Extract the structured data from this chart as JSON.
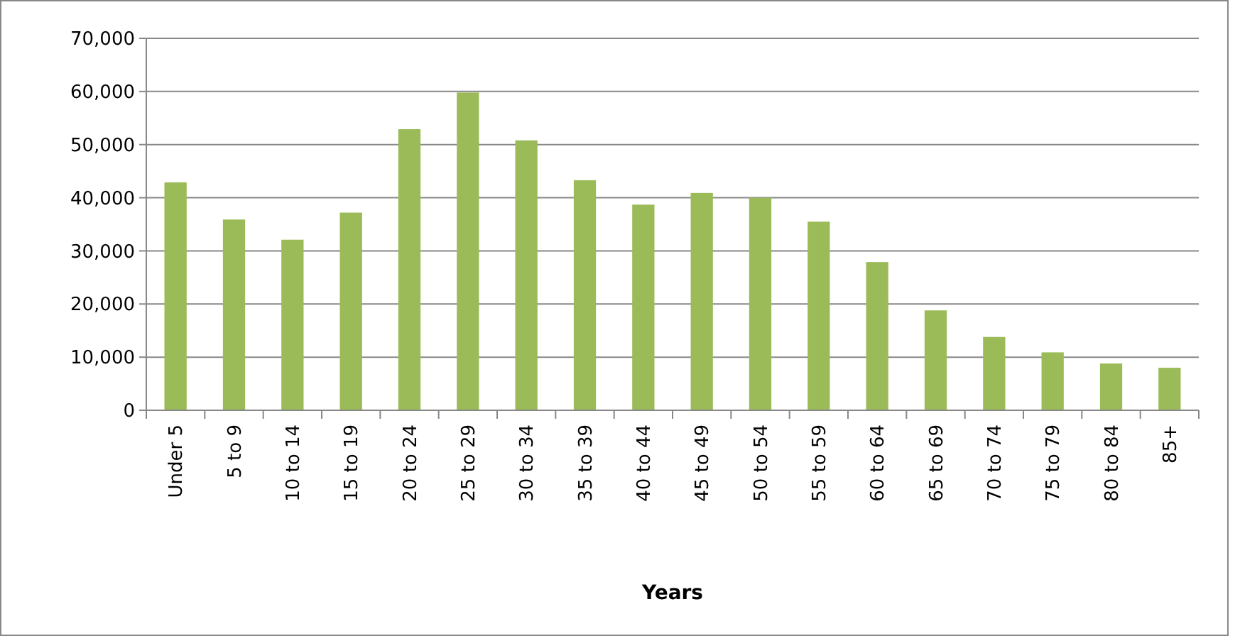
{
  "chart_data": {
    "type": "bar",
    "xlabel": "Years",
    "categories": [
      "Under 5",
      "5 to 9",
      "10 to 14",
      "15 to 19",
      "20 to 24",
      "25 to 29",
      "30 to 34",
      "35 to 39",
      "40 to 44",
      "45 to 49",
      "50 to 54",
      "55 to 59",
      "60 to 64",
      "65 to 69",
      "70 to 74",
      "75 to 79",
      "80 to 84",
      "85+"
    ],
    "values": [
      42900,
      35900,
      32100,
      37200,
      52900,
      59800,
      50800,
      43300,
      38700,
      40900,
      40000,
      35500,
      27900,
      18800,
      13800,
      10900,
      8800,
      8000
    ],
    "color": "#9bbb59",
    "ylim": [
      0,
      70000
    ],
    "yticks": [
      {
        "value": 0,
        "label": "0"
      },
      {
        "value": 10000,
        "label": "10,000"
      },
      {
        "value": 20000,
        "label": "20,000"
      },
      {
        "value": 30000,
        "label": "30,000"
      },
      {
        "value": 40000,
        "label": "40,000"
      },
      {
        "value": 50000,
        "label": "50,000"
      },
      {
        "value": 60000,
        "label": "60,000"
      },
      {
        "value": 70000,
        "label": "70,000"
      }
    ],
    "grid": "y"
  }
}
